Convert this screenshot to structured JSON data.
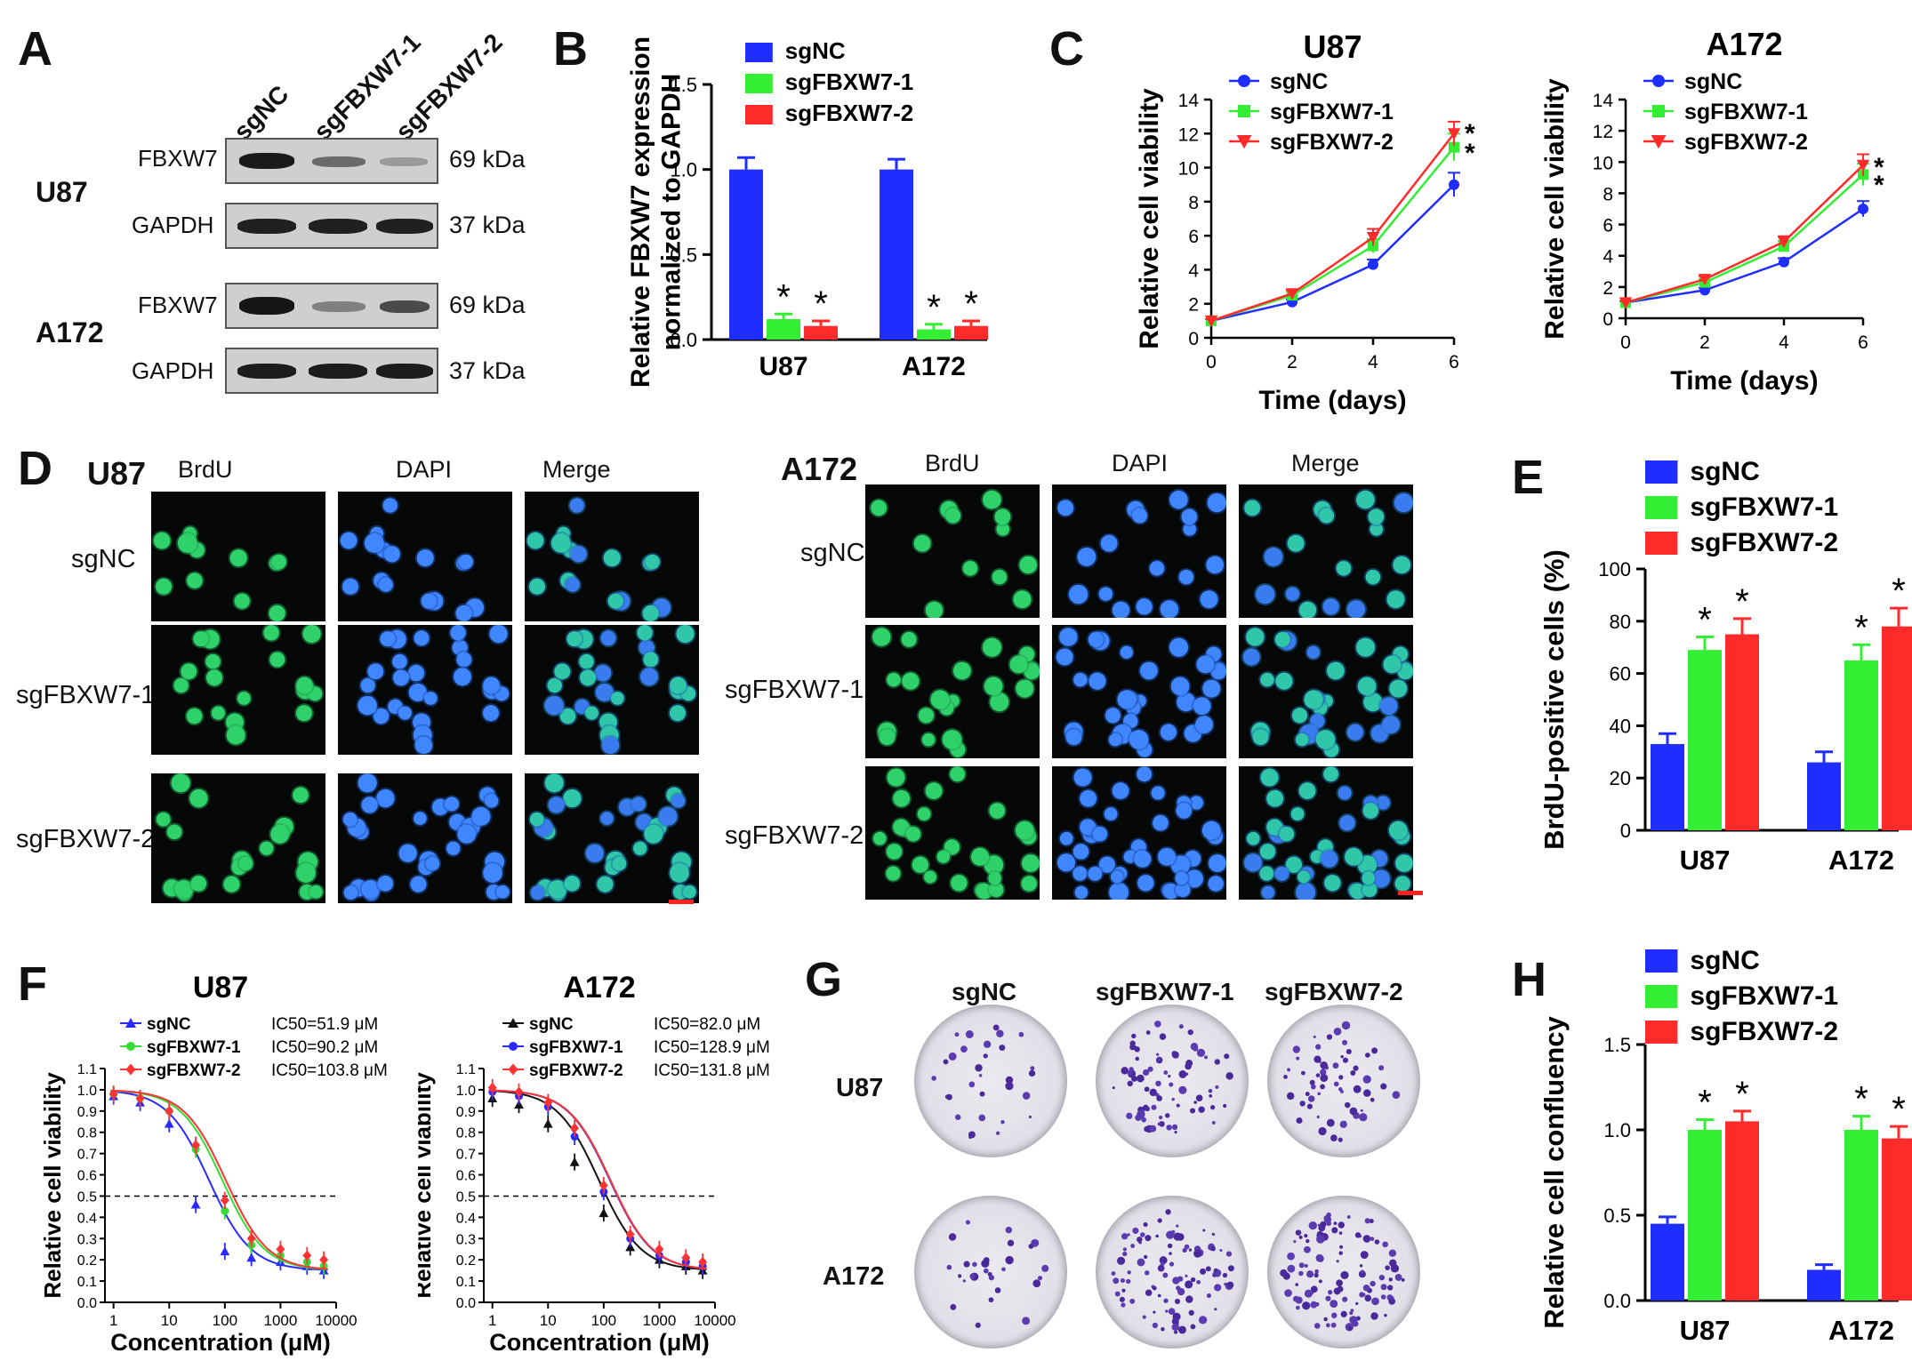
{
  "panels": {
    "A": {
      "label": "A",
      "columns": [
        "sgNC",
        "sgFBXW7-1",
        "sgFBXW7-2"
      ],
      "groups": [
        {
          "cell": "U87",
          "rows": [
            {
              "protein": "FBXW7",
              "kda": "69 kDa"
            },
            {
              "protein": "GAPDH",
              "kda": "37 kDa"
            }
          ]
        },
        {
          "cell": "A172",
          "rows": [
            {
              "protein": "FBXW7",
              "kda": "69 kDa"
            },
            {
              "protein": "GAPDH",
              "kda": "37 kDa"
            }
          ]
        }
      ]
    },
    "B": {
      "label": "B"
    },
    "C": {
      "label": "C"
    },
    "D": {
      "label": "D",
      "groups": [
        {
          "cell": "U87",
          "channels": [
            "BrdU",
            "DAPI",
            "Merge"
          ],
          "rows": [
            "sgNC",
            "sgFBXW7-1",
            "sgFBXW7-2"
          ]
        },
        {
          "cell": "A172",
          "channels": [
            "BrdU",
            "DAPI",
            "Merge"
          ],
          "rows": [
            "sgNC",
            "sgFBXW7-1",
            "sgFBXW7-2"
          ]
        }
      ]
    },
    "E": {
      "label": "E"
    },
    "F": {
      "label": "F"
    },
    "G": {
      "label": "G",
      "columns": [
        "sgNC",
        "sgFBXW7-1",
        "sgFBXW7-2"
      ],
      "rows": [
        "U87",
        "A172"
      ]
    },
    "H": {
      "label": "H"
    }
  },
  "chart_data": [
    {
      "id": "B",
      "type": "bar",
      "categories": [
        "U87",
        "A172"
      ],
      "series": [
        {
          "name": "sgNC",
          "values": [
            1.0,
            1.0
          ],
          "errors": [
            0.07,
            0.06
          ],
          "color": "#1f2dff"
        },
        {
          "name": "sgFBXW7-1",
          "values": [
            0.12,
            0.06
          ],
          "errors": [
            0.03,
            0.03
          ],
          "color": "#33ee33"
        },
        {
          "name": "sgFBXW7-2",
          "values": [
            0.08,
            0.08
          ],
          "errors": [
            0.03,
            0.03
          ],
          "color": "#ff2a2a"
        }
      ],
      "significance": [
        [
          false,
          true,
          true
        ],
        [
          false,
          true,
          true
        ]
      ],
      "ylabel": "Relative FBXW7 expression normalized to GAPDH",
      "ylim": [
        0,
        1.5
      ],
      "yticks": [
        "0.0",
        "0.5",
        "1.0",
        "1.5"
      ],
      "legend": "top-left"
    },
    {
      "id": "C1",
      "type": "line",
      "title": "U87",
      "x": [
        0,
        2,
        4,
        6
      ],
      "series": [
        {
          "name": "sgNC",
          "values": [
            1.0,
            2.1,
            4.3,
            9.0
          ],
          "errors": [
            0.1,
            0.15,
            0.3,
            0.7
          ],
          "color": "#1f2dff",
          "marker": "circle"
        },
        {
          "name": "sgFBXW7-1",
          "values": [
            1.0,
            2.5,
            5.4,
            11.2
          ],
          "errors": [
            0.1,
            0.2,
            0.4,
            0.8
          ],
          "color": "#33ee33",
          "marker": "square"
        },
        {
          "name": "sgFBXW7-2",
          "values": [
            1.0,
            2.6,
            5.9,
            12.0
          ],
          "errors": [
            0.1,
            0.2,
            0.5,
            0.7
          ],
          "color": "#ff2a2a",
          "marker": "triangle-down"
        }
      ],
      "significance": [
        "*",
        "*"
      ],
      "xlabel": "Time (days)",
      "ylabel": "Relative cell viability",
      "xlim": [
        0,
        6
      ],
      "ylim": [
        0,
        14
      ],
      "xticks": [
        "0",
        "2",
        "4",
        "6"
      ],
      "yticks": [
        "0",
        "2",
        "4",
        "6",
        "8",
        "10",
        "12",
        "14"
      ]
    },
    {
      "id": "C2",
      "type": "line",
      "title": "A172",
      "x": [
        0,
        2,
        4,
        6
      ],
      "series": [
        {
          "name": "sgNC",
          "values": [
            1.0,
            1.8,
            3.6,
            7.0
          ],
          "errors": [
            0.1,
            0.15,
            0.25,
            0.5
          ],
          "color": "#1f2dff",
          "marker": "circle"
        },
        {
          "name": "sgFBXW7-1",
          "values": [
            1.0,
            2.3,
            4.6,
            9.2
          ],
          "errors": [
            0.1,
            0.2,
            0.35,
            0.7
          ],
          "color": "#33ee33",
          "marker": "square"
        },
        {
          "name": "sgFBXW7-2",
          "values": [
            1.0,
            2.5,
            4.9,
            9.8
          ],
          "errors": [
            0.1,
            0.2,
            0.35,
            0.7
          ],
          "color": "#ff2a2a",
          "marker": "triangle-down"
        }
      ],
      "significance": [
        "*",
        "*"
      ],
      "xlabel": "Time (days)",
      "ylabel": "Relative cell viability",
      "xlim": [
        0,
        6
      ],
      "ylim": [
        0,
        14
      ],
      "xticks": [
        "0",
        "2",
        "4",
        "6"
      ],
      "yticks": [
        "0",
        "2",
        "4",
        "6",
        "8",
        "10",
        "12",
        "14"
      ]
    },
    {
      "id": "E",
      "type": "bar",
      "categories": [
        "U87",
        "A172"
      ],
      "series": [
        {
          "name": "sgNC",
          "values": [
            33,
            26
          ],
          "errors": [
            4,
            4
          ],
          "color": "#1f2dff"
        },
        {
          "name": "sgFBXW7-1",
          "values": [
            69,
            65
          ],
          "errors": [
            5,
            6
          ],
          "color": "#33ee33"
        },
        {
          "name": "sgFBXW7-2",
          "values": [
            75,
            78
          ],
          "errors": [
            6,
            7
          ],
          "color": "#ff2a2a"
        }
      ],
      "significance": [
        [
          false,
          true,
          true
        ],
        [
          false,
          true,
          true
        ]
      ],
      "ylabel": "BrdU-positive cells (%)",
      "ylim": [
        0,
        100
      ],
      "yticks": [
        "0",
        "20",
        "40",
        "60",
        "80",
        "100"
      ],
      "legend": "top"
    },
    {
      "id": "F1",
      "type": "line",
      "title": "U87",
      "x": [
        1,
        3,
        10,
        30,
        100,
        300,
        1000,
        3000,
        6000
      ],
      "series": [
        {
          "name": "sgNC",
          "ic50_label": "IC50=51.9 μM",
          "ic50": 51.9,
          "values": [
            0.97,
            0.94,
            0.84,
            0.46,
            0.24,
            0.21,
            0.19,
            0.17,
            0.15
          ],
          "color": "#2a2aff",
          "marker": "triangle-up"
        },
        {
          "name": "sgFBXW7-1",
          "ic50_label": "IC50=90.2 μM",
          "ic50": 90.2,
          "values": [
            0.98,
            0.96,
            0.9,
            0.72,
            0.43,
            0.27,
            0.22,
            0.19,
            0.17
          ],
          "color": "#33dd33",
          "marker": "circle"
        },
        {
          "name": "sgFBXW7-2",
          "ic50_label": "IC50=103.8 μM",
          "ic50": 103.8,
          "values": [
            0.98,
            0.96,
            0.9,
            0.74,
            0.48,
            0.3,
            0.25,
            0.22,
            0.2
          ],
          "color": "#ff3333",
          "marker": "diamond"
        }
      ],
      "xlabel": "Concentration (μM)",
      "ylabel": "Relative cell viability",
      "xscale": "log",
      "xlim": [
        0.7,
        10000
      ],
      "ylim": [
        0,
        1.1
      ],
      "xticks": [
        "1",
        "10",
        "100",
        "1000",
        "10000"
      ],
      "yticks": [
        "0.0",
        "0.1",
        "0.2",
        "0.3",
        "0.4",
        "0.5",
        "0.6",
        "0.7",
        "0.8",
        "0.9",
        "1.0",
        "1.1"
      ],
      "reference_line": 0.5
    },
    {
      "id": "F2",
      "type": "line",
      "title": "A172",
      "x": [
        1,
        3,
        10,
        30,
        100,
        300,
        1000,
        3000,
        6000
      ],
      "series": [
        {
          "name": "sgNC",
          "ic50_label": "IC50=82.0 μM",
          "ic50": 82.0,
          "values": [
            0.96,
            0.93,
            0.84,
            0.66,
            0.42,
            0.26,
            0.2,
            0.17,
            0.15
          ],
          "color": "#111111",
          "marker": "triangle-up"
        },
        {
          "name": "sgFBXW7-1",
          "ic50_label": "IC50=128.9 μM",
          "ic50": 128.9,
          "values": [
            0.99,
            0.97,
            0.92,
            0.78,
            0.52,
            0.3,
            0.22,
            0.19,
            0.17
          ],
          "color": "#2a2aff",
          "marker": "circle"
        },
        {
          "name": "sgFBXW7-2",
          "ic50_label": "IC50=131.8 μM",
          "ic50": 131.8,
          "values": [
            1.01,
            0.99,
            0.94,
            0.82,
            0.55,
            0.32,
            0.25,
            0.21,
            0.19
          ],
          "color": "#ff3333",
          "marker": "diamond"
        }
      ],
      "xlabel": "Concentration (μM)",
      "ylabel": "Relative cell viability",
      "xscale": "log",
      "xlim": [
        0.7,
        10000
      ],
      "ylim": [
        0,
        1.1
      ],
      "xticks": [
        "1",
        "10",
        "100",
        "1000",
        "10000"
      ],
      "yticks": [
        "0.0",
        "0.1",
        "0.2",
        "0.3",
        "0.4",
        "0.5",
        "0.6",
        "0.7",
        "0.8",
        "0.9",
        "1.0",
        "1.1"
      ],
      "reference_line": 0.5
    },
    {
      "id": "H",
      "type": "bar",
      "categories": [
        "U87",
        "A172"
      ],
      "series": [
        {
          "name": "sgNC",
          "values": [
            0.45,
            0.18
          ],
          "errors": [
            0.04,
            0.03
          ],
          "color": "#1f2dff"
        },
        {
          "name": "sgFBXW7-1",
          "values": [
            1.0,
            1.0
          ],
          "errors": [
            0.06,
            0.08
          ],
          "color": "#33ee33"
        },
        {
          "name": "sgFBXW7-2",
          "values": [
            1.05,
            0.95
          ],
          "errors": [
            0.06,
            0.07
          ],
          "color": "#ff2a2a"
        }
      ],
      "significance": [
        [
          false,
          true,
          true
        ],
        [
          false,
          true,
          true
        ]
      ],
      "ylabel": "Relative cell confluency",
      "ylim": [
        0,
        1.5
      ],
      "yticks": [
        "0.0",
        "0.5",
        "1.0",
        "1.5"
      ],
      "legend": "top"
    }
  ]
}
